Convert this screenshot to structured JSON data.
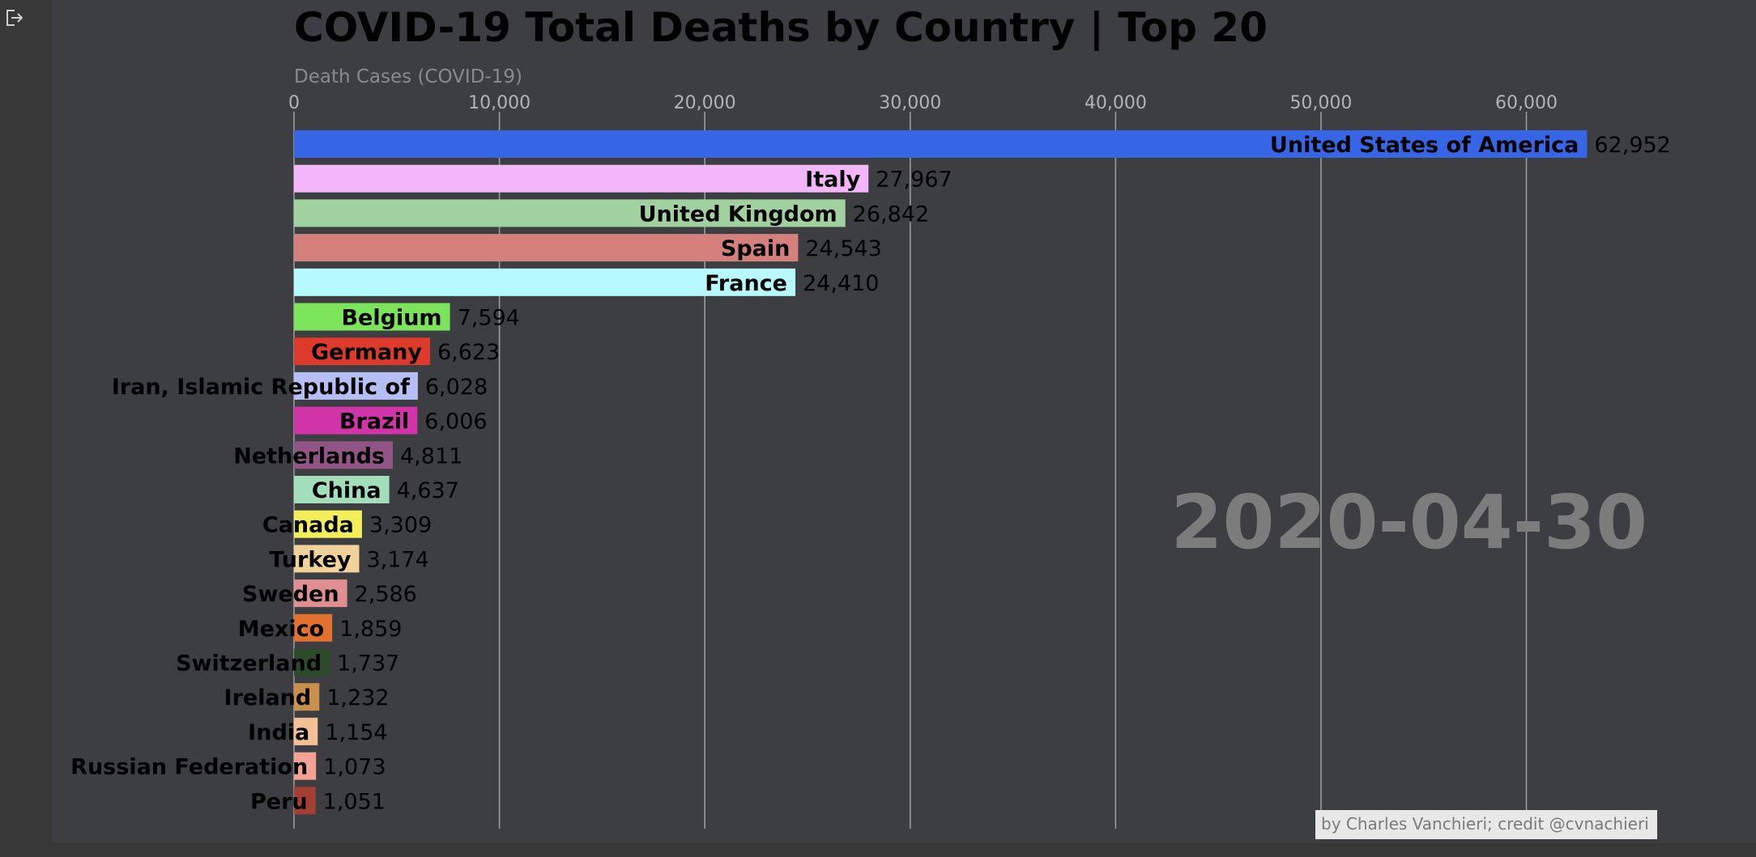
{
  "toolbar": {
    "exit_icon": "exit-icon"
  },
  "chart_data": {
    "type": "bar",
    "orientation": "horizontal",
    "title": "COVID-19 Total Deaths by Country | Top 20",
    "xlabel": "Death Cases (COVID-19)",
    "xlim": [
      0,
      65500
    ],
    "xticks": [
      0,
      10000,
      20000,
      30000,
      40000,
      50000,
      60000
    ],
    "xtick_labels": [
      "0",
      "10,000",
      "20,000",
      "30,000",
      "40,000",
      "50,000",
      "60,000"
    ],
    "grid": true,
    "date": "2020-04-30",
    "credit": "by Charles Vanchieri; credit @cvnachieri",
    "categories": [
      "United States of America",
      "Italy",
      "United Kingdom",
      "Spain",
      "France",
      "Belgium",
      "Germany",
      "Iran, Islamic Republic of",
      "Brazil",
      "Netherlands",
      "China",
      "Canada",
      "Turkey",
      "Sweden",
      "Mexico",
      "Switzerland",
      "Ireland",
      "India",
      "Russian Federation",
      "Peru"
    ],
    "values": [
      62952,
      27967,
      26842,
      24543,
      24410,
      7594,
      6623,
      6028,
      6006,
      4811,
      4637,
      3309,
      3174,
      2586,
      1859,
      1737,
      1232,
      1154,
      1073,
      1051
    ],
    "value_labels": [
      "62,952",
      "27,967",
      "26,842",
      "24,543",
      "24,410",
      "7,594",
      "6,623",
      "6,028",
      "6,006",
      "4,811",
      "4,637",
      "3,309",
      "3,174",
      "2,586",
      "1,859",
      "1,737",
      "1,232",
      "1,154",
      "1,073",
      "1,051"
    ],
    "colors": [
      "#3665e5",
      "#f4b6fa",
      "#a0d19e",
      "#d4807c",
      "#b6faff",
      "#7ce45a",
      "#de3a2c",
      "#b6bff5",
      "#d134a9",
      "#905585",
      "#a3deba",
      "#f4ee58",
      "#f0d29a",
      "#e08f90",
      "#e2702f",
      "#2b4b2a",
      "#c8904a",
      "#f4c094",
      "#f3a293",
      "#a33f33"
    ]
  }
}
